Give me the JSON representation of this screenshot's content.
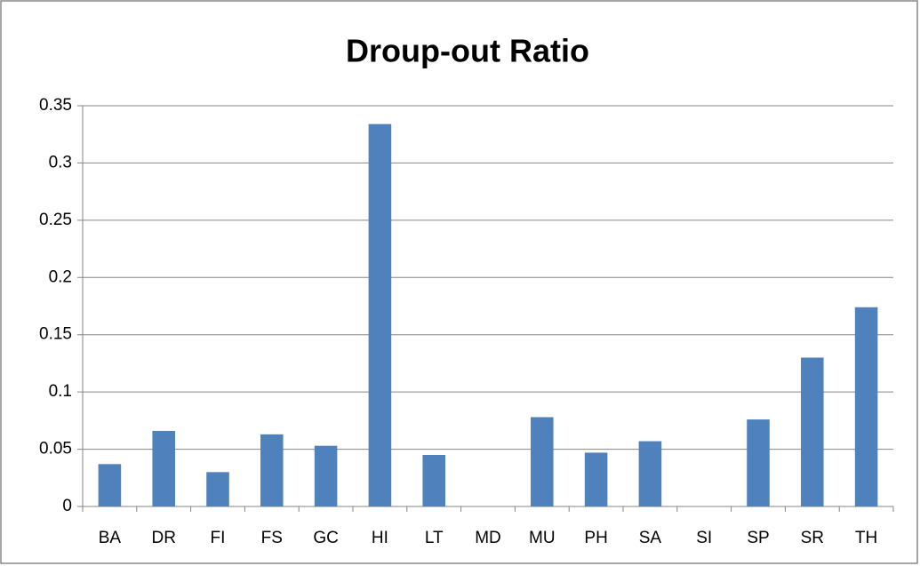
{
  "chart_data": {
    "type": "bar",
    "title": "Droup-out Ratio",
    "categories": [
      "BA",
      "DR",
      "FI",
      "FS",
      "GC",
      "HI",
      "LT",
      "MD",
      "MU",
      "PH",
      "SA",
      "SI",
      "SP",
      "SR",
      "TH"
    ],
    "values": [
      0.037,
      0.066,
      0.03,
      0.063,
      0.053,
      0.334,
      0.045,
      0,
      0.078,
      0.047,
      0.057,
      0,
      0.076,
      0.13,
      0.174
    ],
    "color": "#4f81bd",
    "ylim": [
      0,
      0.35
    ],
    "yticks": [
      0,
      0.05,
      0.1,
      0.15,
      0.2,
      0.25,
      0.3,
      0.35
    ],
    "grid": true
  }
}
